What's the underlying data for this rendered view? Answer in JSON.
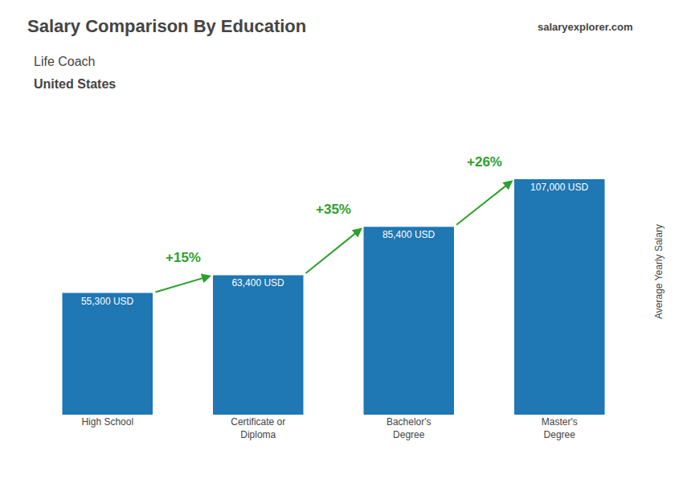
{
  "chart_data": {
    "type": "bar",
    "title": "Salary Comparison By Education",
    "subtitle": [
      "Life Coach",
      "United States"
    ],
    "source": "salaryexplorer.com",
    "ylabel": "Average Yearly Salary",
    "categories": [
      "High School",
      "Certificate or\nDiploma",
      "Bachelor's\nDegree",
      "Master's\nDegree"
    ],
    "values": [
      55300,
      63400,
      85400,
      107000
    ],
    "value_labels": [
      "55,300 USD",
      "63,400 USD",
      "85,400 USD",
      "107,000 USD"
    ],
    "data_labels": true,
    "annotations": [
      "+15%",
      "+35%",
      "+26%"
    ],
    "ylim": [
      0,
      130000
    ],
    "tick_labels": "x",
    "grid": false
  }
}
